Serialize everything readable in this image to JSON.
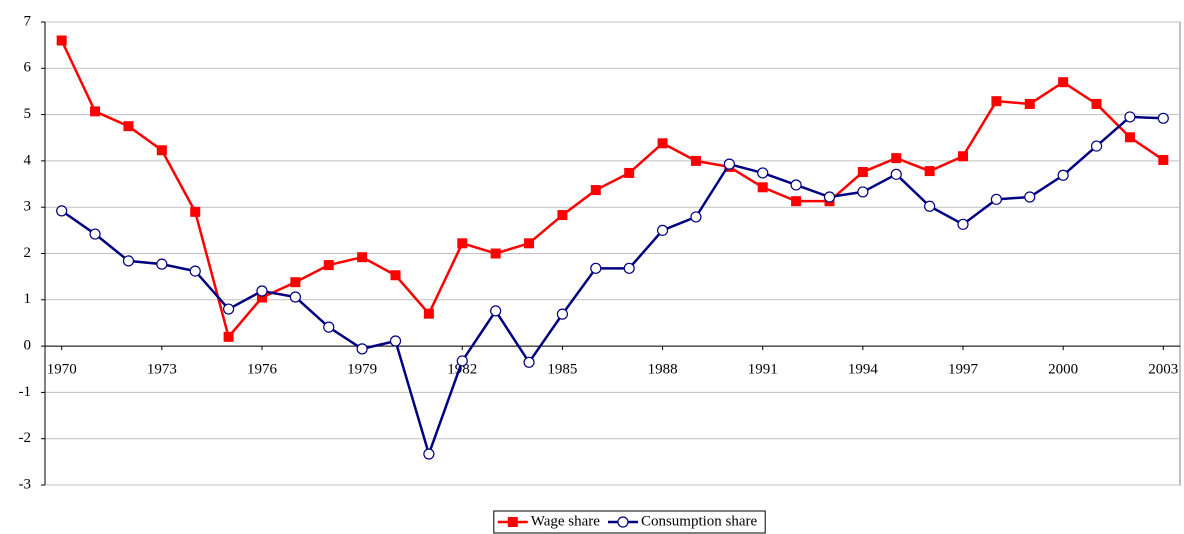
{
  "chart_data": {
    "type": "line",
    "x": [
      1970,
      1971,
      1972,
      1973,
      1974,
      1975,
      1976,
      1977,
      1978,
      1979,
      1980,
      1981,
      1982,
      1983,
      1984,
      1985,
      1986,
      1987,
      1988,
      1989,
      1990,
      1991,
      1992,
      1993,
      1994,
      1995,
      1996,
      1997,
      1998,
      1999,
      2000,
      2001,
      2002,
      2003
    ],
    "series": [
      {
        "name": "Wage share",
        "color": "#ff0000",
        "marker": "square",
        "values": [
          6.6,
          5.07,
          4.75,
          4.23,
          2.9,
          0.2,
          1.05,
          1.38,
          1.75,
          1.92,
          1.53,
          0.7,
          2.22,
          2.0,
          2.22,
          2.83,
          3.37,
          3.74,
          4.38,
          4.0,
          3.87,
          3.43,
          3.13,
          3.13,
          3.76,
          4.06,
          3.78,
          4.1,
          5.29,
          5.23,
          5.7,
          5.23,
          4.51,
          4.02
        ]
      },
      {
        "name": "Consumption share",
        "color": "#000080",
        "marker": "circle",
        "values": [
          2.92,
          2.42,
          1.84,
          1.77,
          1.62,
          0.8,
          1.19,
          1.06,
          0.41,
          -0.06,
          0.11,
          -2.33,
          -0.32,
          0.76,
          -0.35,
          0.69,
          1.68,
          1.68,
          2.5,
          2.79,
          3.93,
          3.74,
          3.48,
          3.22,
          3.33,
          3.71,
          3.02,
          2.63,
          3.17,
          3.22,
          3.69,
          4.32,
          4.95,
          4.92
        ]
      }
    ],
    "xlim": [
      1969.5,
      2003.5
    ],
    "xticks": [
      1970,
      1973,
      1976,
      1979,
      1982,
      1985,
      1988,
      1991,
      1994,
      1997,
      2000,
      2003
    ],
    "ylim": [
      -3,
      7
    ],
    "yticks": [
      -3,
      -2,
      -1,
      0,
      1,
      2,
      3,
      4,
      5,
      6,
      7
    ],
    "grid": true,
    "legend": "bottom"
  }
}
